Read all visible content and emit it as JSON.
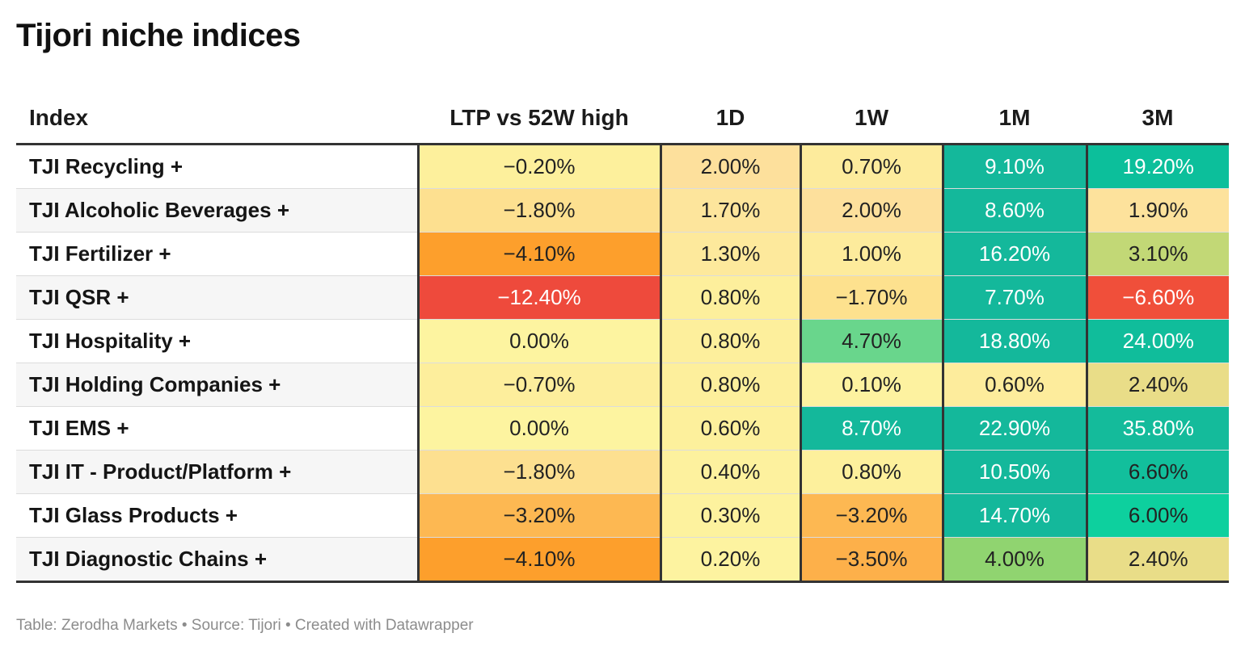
{
  "title": "Tijori niche indices",
  "footer": "Table: Zerodha Markets • Source: Tijori • Created with Datawrapper",
  "chart_data": {
    "type": "table",
    "title": "Tijori niche indices",
    "columns": [
      "Index",
      "LTP vs 52W high",
      "1D",
      "1W",
      "1M",
      "3M"
    ],
    "rows": [
      {
        "name": "TJI Recycling +",
        "values": [
          "−0.20%",
          "2.00%",
          "0.70%",
          "9.10%",
          "19.20%"
        ],
        "colors": [
          "#fdf09c",
          "#fde09c",
          "#fdeb9c",
          "#14b89b",
          "#0cbf9b"
        ]
      },
      {
        "name": "TJI Alcoholic Beverages +",
        "values": [
          "−1.80%",
          "1.70%",
          "2.00%",
          "8.60%",
          "1.90%"
        ],
        "colors": [
          "#fde090",
          "#fde59c",
          "#fde09c",
          "#14b89b",
          "#fde29c"
        ]
      },
      {
        "name": "TJI Fertilizer +",
        "values": [
          "−4.10%",
          "1.30%",
          "1.00%",
          "16.20%",
          "3.10%"
        ],
        "colors": [
          "#fd9f2c",
          "#fde99c",
          "#fdeb9c",
          "#14b89b",
          "#c2d876"
        ]
      },
      {
        "name": "TJI QSR +",
        "values": [
          "−12.40%",
          "0.80%",
          "−1.70%",
          "7.70%",
          "−6.60%"
        ],
        "colors": [
          "#ee4a3c",
          "#fdef9c",
          "#fde18e",
          "#14b89b",
          "#f04f3a"
        ]
      },
      {
        "name": "TJI Hospitality +",
        "values": [
          "0.00%",
          "0.80%",
          "4.70%",
          "18.80%",
          "24.00%"
        ],
        "colors": [
          "#fdf4a0",
          "#fdef9c",
          "#69d68c",
          "#14b89b",
          "#10bd9b"
        ]
      },
      {
        "name": "TJI Holding Companies +",
        "values": [
          "−0.70%",
          "0.80%",
          "0.10%",
          "0.60%",
          "2.40%"
        ],
        "colors": [
          "#fdee9c",
          "#fdef9c",
          "#fdf2a0",
          "#fdec9c",
          "#e9dd88"
        ]
      },
      {
        "name": "TJI EMS +",
        "values": [
          "0.00%",
          "0.60%",
          "8.70%",
          "22.90%",
          "35.80%"
        ],
        "colors": [
          "#fdf4a0",
          "#fdf09c",
          "#14b89b",
          "#14b89b",
          "#14bb9b"
        ]
      },
      {
        "name": "TJI IT - Product/Platform +",
        "values": [
          "−1.80%",
          "0.40%",
          "0.80%",
          "10.50%",
          "6.60%"
        ],
        "colors": [
          "#fde090",
          "#fdf19e",
          "#fdf09c",
          "#14b89b",
          "#12bf9c"
        ]
      },
      {
        "name": "TJI Glass Products +",
        "values": [
          "−3.20%",
          "0.30%",
          "−3.20%",
          "14.70%",
          "6.00%"
        ],
        "colors": [
          "#fdb852",
          "#fdf29e",
          "#fdb852",
          "#14b89b",
          "#0dd09e"
        ]
      },
      {
        "name": "TJI Diagnostic Chains +",
        "values": [
          "−4.10%",
          "0.20%",
          "−3.50%",
          "4.00%",
          "2.40%"
        ],
        "colors": [
          "#fd9f2c",
          "#fdf3a0",
          "#fdb04a",
          "#90d470",
          "#e9dd88"
        ]
      }
    ]
  }
}
